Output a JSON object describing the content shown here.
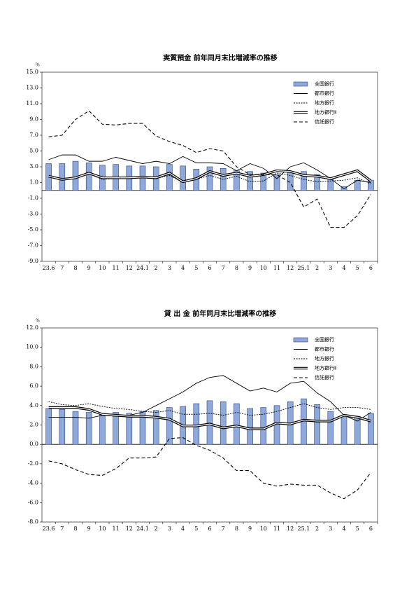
{
  "chart_data": [
    {
      "type": "bar-line",
      "title": "実質預金 前年同月末比増減率の推移",
      "y_unit": "%",
      "categories": [
        "23.6",
        "7",
        "8",
        "9",
        "10",
        "11",
        "12",
        "24.1",
        "2",
        "3",
        "4",
        "5",
        "6",
        "7",
        "8",
        "9",
        "10",
        "11",
        "12",
        "25.1",
        "2",
        "3",
        "4",
        "5",
        "6"
      ],
      "ylim": [
        -9,
        15
      ],
      "yticks": [
        {
          "value": -9,
          "label": "-9.0"
        },
        {
          "value": -7,
          "label": "-7.0"
        },
        {
          "value": -5,
          "label": "-5.0"
        },
        {
          "value": -3,
          "label": "-3.0"
        },
        {
          "value": -1,
          "label": "-1.0"
        },
        {
          "value": 1,
          "label": "1.0"
        },
        {
          "value": 3,
          "label": "3.0"
        },
        {
          "value": 5,
          "label": "5.0"
        },
        {
          "value": 7,
          "label": "7.0"
        },
        {
          "value": 9,
          "label": "9.0"
        },
        {
          "value": 11,
          "label": "11.0"
        },
        {
          "value": 13,
          "label": "13.0"
        },
        {
          "value": 15,
          "label": "15.0"
        }
      ],
      "grid": false,
      "legend": "upper right",
      "series": [
        {
          "name": "全国銀行",
          "kind": "bar",
          "color": "#8fa9da",
          "values": [
            3.4,
            3.4,
            3.7,
            3.5,
            3.2,
            3.3,
            3.1,
            3.1,
            3.0,
            3.3,
            3.1,
            2.7,
            3.0,
            2.8,
            2.5,
            2.4,
            2.2,
            2.0,
            2.4,
            2.4,
            2.0,
            1.5,
            0.5,
            1.3,
            1.3
          ]
        },
        {
          "name": "都市銀行",
          "kind": "line",
          "line_style": "solid",
          "color": "#000000",
          "values": [
            3.9,
            4.5,
            4.5,
            3.7,
            3.7,
            4.2,
            3.8,
            3.4,
            3.7,
            3.4,
            4.3,
            3.5,
            3.5,
            3.4,
            2.5,
            3.4,
            2.8,
            1.5,
            3.0,
            3.5,
            2.6,
            1.5,
            0.2,
            1.3,
            1.0
          ]
        },
        {
          "name": "地方銀行",
          "kind": "line",
          "line_style": "dotted",
          "color": "#000000",
          "values": [
            1.7,
            1.5,
            1.6,
            2.1,
            1.4,
            1.5,
            1.5,
            1.6,
            1.5,
            1.9,
            1.0,
            1.4,
            1.9,
            1.4,
            1.8,
            1.1,
            1.2,
            2.2,
            1.9,
            1.4,
            1.1,
            1.2,
            1.3,
            1.6,
            0.8
          ]
        },
        {
          "name": "地方銀行Ⅱ",
          "kind": "line",
          "line_style": "double",
          "color": "#000000",
          "values": [
            1.8,
            1.4,
            1.6,
            2.2,
            1.6,
            1.6,
            1.6,
            1.7,
            1.6,
            2.2,
            1.1,
            1.5,
            2.4,
            1.9,
            2.2,
            1.8,
            2.0,
            2.5,
            2.4,
            1.9,
            1.8,
            1.5,
            2.0,
            2.5,
            1.2
          ]
        },
        {
          "name": "信託銀行",
          "kind": "line",
          "line_style": "dashed",
          "color": "#000000",
          "values": [
            6.8,
            7.0,
            9.0,
            10.1,
            8.4,
            8.3,
            8.5,
            8.5,
            6.9,
            6.2,
            5.7,
            4.8,
            5.3,
            5.0,
            3.0,
            2.0,
            2.0,
            2.0,
            1.0,
            -2.1,
            -1.1,
            -4.7,
            -4.7,
            -3.2,
            -0.5
          ]
        }
      ]
    },
    {
      "type": "bar-line",
      "title": "貸 出 金 前年同月末比増減率の推移",
      "y_unit": "%",
      "categories": [
        "23.6",
        "7",
        "8",
        "9",
        "10",
        "11",
        "12",
        "24.1",
        "2",
        "3",
        "4",
        "5",
        "6",
        "7",
        "8",
        "9",
        "10",
        "11",
        "12",
        "25.1",
        "2",
        "3",
        "4",
        "5",
        "6"
      ],
      "ylim": [
        -8,
        12
      ],
      "yticks": [
        {
          "value": -8,
          "label": "-8.0"
        },
        {
          "value": -6,
          "label": "-6.0"
        },
        {
          "value": -4,
          "label": "-4.0"
        },
        {
          "value": -2,
          "label": "-2.0"
        },
        {
          "value": 0,
          "label": "0.0"
        },
        {
          "value": 2,
          "label": "2.0"
        },
        {
          "value": 4,
          "label": "4.0"
        },
        {
          "value": 6,
          "label": "6.0"
        },
        {
          "value": 8,
          "label": "8.0"
        },
        {
          "value": 10,
          "label": "10.0"
        },
        {
          "value": 12,
          "label": "12.0"
        }
      ],
      "grid": false,
      "legend": "upper right",
      "series": [
        {
          "name": "全国銀行",
          "kind": "bar",
          "color": "#8fa9da",
          "values": [
            3.7,
            3.6,
            3.4,
            3.3,
            3.2,
            3.3,
            3.2,
            3.4,
            3.5,
            3.8,
            3.9,
            4.2,
            4.5,
            4.4,
            4.2,
            3.7,
            3.8,
            4.0,
            4.4,
            4.7,
            4.1,
            3.4,
            3.0,
            2.9,
            3.2
          ]
        },
        {
          "name": "都市銀行",
          "kind": "line",
          "line_style": "solid",
          "color": "#000000",
          "values": [
            2.8,
            2.8,
            2.8,
            2.7,
            3.0,
            2.9,
            3.0,
            3.3,
            4.0,
            4.7,
            5.4,
            6.3,
            6.9,
            7.1,
            6.3,
            5.5,
            5.8,
            5.4,
            6.3,
            6.5,
            5.3,
            4.4,
            3.0,
            2.4,
            3.3
          ]
        },
        {
          "name": "地方銀行",
          "kind": "line",
          "line_style": "dotted",
          "color": "#000000",
          "values": [
            4.4,
            4.1,
            4.0,
            4.2,
            3.9,
            3.7,
            3.6,
            3.4,
            3.3,
            3.5,
            3.1,
            3.1,
            3.2,
            3.0,
            3.3,
            3.0,
            3.1,
            3.4,
            3.8,
            4.2,
            3.8,
            3.6,
            3.8,
            3.8,
            3.6
          ]
        },
        {
          "name": "地方銀行Ⅱ",
          "kind": "line",
          "line_style": "double",
          "color": "#000000",
          "values": [
            3.8,
            3.8,
            3.8,
            3.6,
            3.1,
            3.0,
            2.9,
            2.9,
            2.8,
            2.6,
            1.9,
            1.9,
            2.1,
            1.7,
            1.9,
            1.6,
            1.6,
            2.2,
            2.1,
            2.5,
            2.4,
            2.4,
            3.0,
            2.8,
            2.4
          ]
        },
        {
          "name": "信託銀行",
          "kind": "line",
          "line_style": "dashed",
          "color": "#000000",
          "values": [
            -1.7,
            -2.0,
            -2.6,
            -3.1,
            -3.2,
            -2.5,
            -1.4,
            -1.4,
            -1.3,
            0.6,
            0.7,
            -0.1,
            -0.6,
            -1.4,
            -2.7,
            -2.7,
            -4.0,
            -4.3,
            -4.1,
            -4.2,
            -4.2,
            -5.0,
            -5.6,
            -4.7,
            -2.9
          ]
        }
      ]
    }
  ]
}
